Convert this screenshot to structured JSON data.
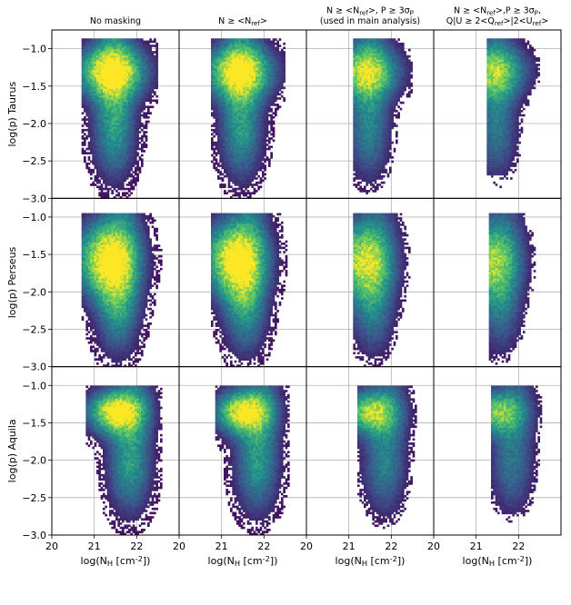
{
  "colors": {
    "panel_border": "#000000",
    "grid": "#b0b0b0",
    "colormap": [
      "#440154",
      "#3b528b",
      "#21918c",
      "#5ec962",
      "#fde725"
    ]
  },
  "chart_data": {
    "type": "heatmap",
    "layout": {
      "rows": 3,
      "cols": 4,
      "shared_axes": true
    },
    "column_titles": [
      [
        "No masking"
      ],
      [
        "N ≥ <N_ref>"
      ],
      [
        "N ≥ <N_ref>, P ≥ 3σ_P",
        "(used in main analysis)"
      ],
      [
        "N ≥ <N_ref>,P ≥ 3σ_P,",
        "Q|U ≥ 2<Q_ref>|2<U_ref>"
      ]
    ],
    "row_labels": [
      "log(p) Taurus",
      "log(p) Perseus",
      "log(p) Aquila"
    ],
    "xlabel": "log(N_H [cm^-2])",
    "xlim": [
      20,
      23
    ],
    "ylim": [
      -3.0,
      -0.75
    ],
    "xticks": [
      20,
      21,
      22
    ],
    "yticks": [
      -1.0,
      -1.5,
      -2.0,
      -2.5,
      -3.0
    ],
    "ytick_labels": [
      "−1.0",
      "−1.5",
      "−2.0",
      "−2.5",
      "−3.0"
    ],
    "grid": true,
    "colormap_name": "viridis",
    "clouds": [
      {
        "name": "Taurus",
        "core": [
          21.4,
          -1.3
        ],
        "spread_x": 0.55,
        "spread_y": 0.25,
        "x_range": [
          20.7,
          22.5
        ],
        "y_top": -0.85,
        "y_bottom": -3.0,
        "tail": [
          21.5,
          -2.6
        ]
      },
      {
        "name": "Perseus",
        "core": [
          21.3,
          -1.55
        ],
        "spread_x": 0.5,
        "spread_y": 0.35,
        "x_range": [
          20.7,
          22.6
        ],
        "y_top": -0.95,
        "y_bottom": -3.0,
        "tail": [
          21.7,
          -2.6
        ]
      },
      {
        "name": "Aquila",
        "core": [
          21.5,
          -1.35
        ],
        "spread_x": 0.45,
        "spread_y": 0.2,
        "x_range": [
          20.8,
          22.6
        ],
        "y_top": -1.0,
        "y_bottom": -3.0,
        "tail": [
          22.0,
          -2.5
        ]
      }
    ],
    "masking_coverage": [
      1.0,
      0.95,
      0.55,
      0.35
    ]
  }
}
